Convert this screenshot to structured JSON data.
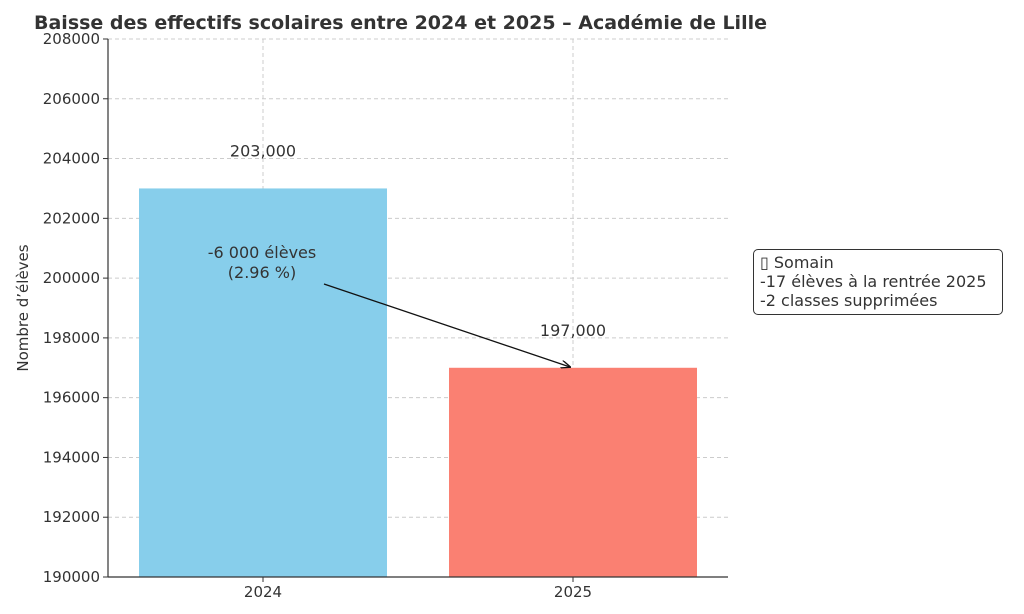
{
  "chart_data": {
    "type": "bar",
    "title": "Baisse des effectifs scolaires entre 2024 et 2025 – Académie de Lille",
    "xlabel": "",
    "ylabel": "Nombre d’élèves",
    "categories": [
      "2024",
      "2025"
    ],
    "values": [
      203000,
      197000
    ],
    "data_labels": [
      "203,000",
      "197,000"
    ],
    "bar_colors": [
      "#87CEEB",
      "#FA8072"
    ],
    "ylim": [
      190000,
      208000
    ],
    "yticks": [
      190000,
      192000,
      194000,
      196000,
      198000,
      200000,
      202000,
      204000,
      206000,
      208000
    ],
    "grid": true,
    "annotation": {
      "lines": [
        "-6 000 élèves",
        "(2.96 %)"
      ],
      "arrow_from_category": "2024",
      "arrow_to_category": "2025"
    },
    "side_note": {
      "lines": [
        "▯ Somain",
        "-17 élèves à la rentrée 2025",
        "-2 classes supprimées"
      ]
    }
  }
}
